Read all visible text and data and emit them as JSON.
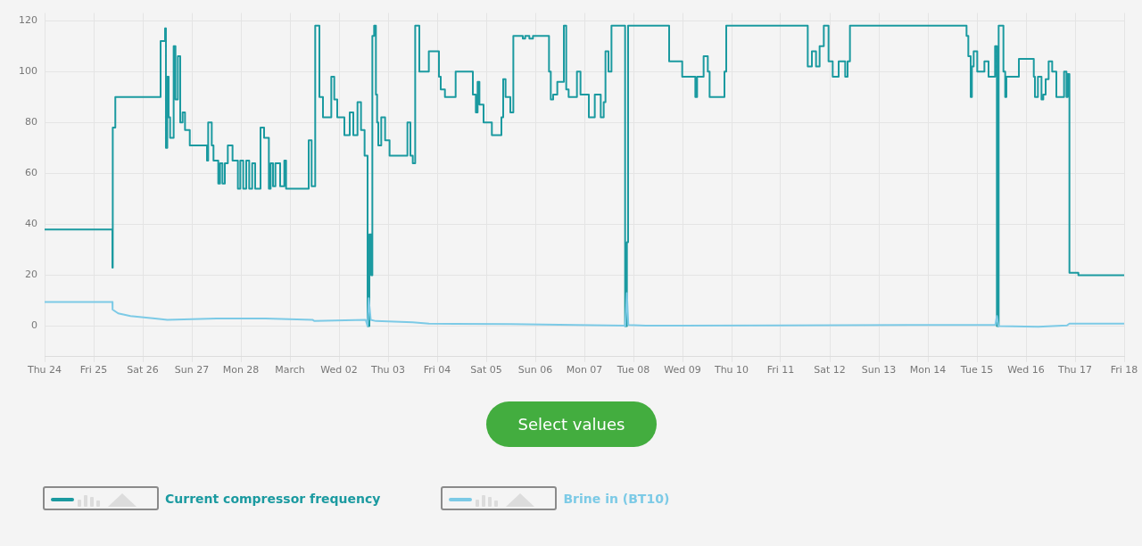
{
  "chart_data": {
    "type": "line",
    "xlim": [
      "--02-24",
      "--03-18"
    ],
    "ylim": [
      -12,
      123
    ],
    "xticks": [
      {
        "value": "--02-24",
        "label": "Thu 24"
      },
      {
        "value": "--02-25",
        "label": "Fri 25"
      },
      {
        "value": "--02-26",
        "label": "Sat 26"
      },
      {
        "value": "--02-27",
        "label": "Sun 27"
      },
      {
        "value": "--02-28",
        "label": "Mon 28"
      },
      {
        "value": "--03-01",
        "label": "March"
      },
      {
        "value": "--03-02",
        "label": "Wed 02"
      },
      {
        "value": "--03-03",
        "label": "Thu 03"
      },
      {
        "value": "--03-04",
        "label": "Fri 04"
      },
      {
        "value": "--03-05",
        "label": "Sat 05"
      },
      {
        "value": "--03-06",
        "label": "Sun 06"
      },
      {
        "value": "--03-07",
        "label": "Mon 07"
      },
      {
        "value": "--03-08",
        "label": "Tue 08"
      },
      {
        "value": "--03-09",
        "label": "Wed 09"
      },
      {
        "value": "--03-10",
        "label": "Thu 10"
      },
      {
        "value": "--03-11",
        "label": "Fri 11"
      },
      {
        "value": "--03-12",
        "label": "Sat 12"
      },
      {
        "value": "--03-13",
        "label": "Sun 13"
      },
      {
        "value": "--03-14",
        "label": "Mon 14"
      },
      {
        "value": "--03-15",
        "label": "Tue 15"
      },
      {
        "value": "--03-16",
        "label": "Wed 16"
      },
      {
        "value": "--03-17",
        "label": "Thu 17"
      },
      {
        "value": "--03-18",
        "label": "Fri 18"
      }
    ],
    "yticks": [
      0,
      20,
      40,
      60,
      80,
      100,
      120
    ],
    "grid": true,
    "legend": "bottom left",
    "annotations": [
      "Select values"
    ],
    "series": [
      {
        "name": "Current compressor frequency",
        "type": "step",
        "color": "#1b9aa0",
        "x": [
          "--02-24T00:00",
          "--02-25T09:10",
          "--02-25T09:20",
          "--02-25T10:35",
          "--02-26T08:44",
          "--02-26T10:55",
          "--02-26T11:20",
          "--02-26T12:00",
          "--02-26T12:40",
          "--02-26T13:23",
          "--02-26T15:07",
          "--02-26T16:00",
          "--02-26T17:10",
          "--02-26T18:20",
          "--02-26T19:30",
          "--02-26T20:40",
          "--02-26T23:00",
          "--02-27T07:25",
          "--02-27T08:00",
          "--02-27T09:45",
          "--02-27T10:36",
          "--02-27T12:56",
          "--02-27T13:49",
          "--02-27T14:59",
          "--02-27T16:09",
          "--02-27T17:36",
          "--02-27T19:55",
          "--02-27T22:32",
          "--02-27T23:42",
          "--02-28T01:09",
          "--02-28T02:37",
          "--02-28T04:04",
          "--02-28T05:32",
          "--02-28T06:59",
          "--02-28T09:36",
          "--02-28T11:21",
          "--02-28T13:41",
          "--02-28T14:33",
          "--02-28T15:43",
          "--02-28T16:53",
          "--02-28T19:12",
          "--02-28T21:14",
          "--02-28T22:06",
          "--03-01T09:10",
          "--03-01T10:36",
          "--03-01T12:21",
          "--03-01T14:24",
          "--03-01T16:09",
          "--03-01T20:13",
          "--03-01T21:40",
          "--03-01T23:08",
          "--03-02T02:37",
          "--03-02T05:14",
          "--03-02T06:59",
          "--03-02T09:02",
          "--03-02T10:45",
          "--03-02T12:30",
          "--03-02T13:58",
          "--03-02T14:50",
          "--03-02T15:43",
          "--03-02T16:18",
          "--03-02T17:10",
          "--03-02T18:02",
          "--03-02T18:37",
          "--03-02T19:12",
          "--03-02T20:39",
          "--03-02T22:32",
          "--03-03T00:43",
          "--03-03T09:27",
          "--03-03T10:55",
          "--03-03T12:04",
          "--03-03T13:15",
          "--03-03T15:16",
          "--03-03T19:55",
          "--03-04T00:52",
          "--03-04T01:45",
          "--03-04T03:48",
          "--03-04T09:02",
          "--03-04T17:27",
          "--03-04T18:55",
          "--03-04T19:47",
          "--03-04T20:40",
          "--03-04T22:41",
          "--03-05T02:45",
          "--03-05T07:25",
          "--03-05T08:17",
          "--03-05T09:27",
          "--03-05T11:47",
          "--03-05T13:15",
          "--03-05T17:53",
          "--03-05T19:03",
          "--03-05T21:06",
          "--03-05T22:51",
          "--03-06T06:42",
          "--03-06T07:34",
          "--03-06T08:44",
          "--03-06T10:45",
          "--03-06T13:58",
          "--03-06T15:07",
          "--03-06T16:18",
          "--03-06T20:22",
          "--03-06T22:06",
          "--03-07T02:11",
          "--03-07T05:05",
          "--03-07T08:00",
          "--03-07T09:27",
          "--03-07T10:19",
          "--03-07T11:47",
          "--03-07T13:15",
          "--03-07T19:55",
          "--03-07T20:48",
          "--03-07T21:23",
          "--03-08T17:27",
          "--03-08T23:51",
          "--03-09T06:16",
          "--03-09T07:08",
          "--03-09T10:19",
          "--03-09T12:22",
          "--03-09T13:15",
          "--03-09T20:31",
          "--03-09T21:23",
          "--03-11T13:15",
          "--03-11T15:16",
          "--03-11T17:18",
          "--03-11T19:03",
          "--03-11T21:06",
          "--03-11T23:25",
          "--03-12T01:27",
          "--03-12T04:22",
          "--03-12T07:34",
          "--03-12T08:44",
          "--03-12T09:53",
          "--03-14T18:55",
          "--03-14T19:47",
          "--03-14T20:57",
          "--03-14T21:32",
          "--03-14T22:24",
          "--03-15T00:09",
          "--03-15T03:39",
          "--03-15T05:40",
          "--03-15T08:52",
          "--03-15T09:45",
          "--03-15T10:37",
          "--03-15T12:57",
          "--03-15T13:49",
          "--03-15T14:24",
          "--03-15T20:31",
          "--03-16T03:48",
          "--03-16T04:22",
          "--03-16T05:49",
          "--03-16T07:34",
          "--03-16T08:27",
          "--03-16T09:36",
          "--03-16T11:04",
          "--03-16T12:48",
          "--03-16T14:50",
          "--03-16T18:37",
          "--03-16T19:47",
          "--03-16T20:21",
          "--03-16T21:14",
          "--03-17T01:36",
          "--03-18T00:00"
        ],
        "values": [
          38,
          23,
          78,
          90,
          112,
          117,
          70,
          98,
          82,
          74,
          110,
          89,
          106,
          80,
          84,
          77,
          71,
          65,
          80,
          71,
          65,
          56,
          64,
          56,
          64,
          71,
          65,
          54,
          65,
          54,
          65,
          54,
          64,
          54,
          78,
          74,
          54,
          64,
          55,
          64,
          55,
          65,
          54,
          73,
          55,
          118,
          90,
          82,
          98,
          89,
          82,
          75,
          84,
          75,
          88,
          77,
          67,
          0,
          36,
          20,
          114,
          118,
          91,
          80,
          71,
          82,
          73,
          67,
          80,
          67,
          64,
          118,
          100,
          108,
          98,
          93,
          90,
          100,
          91,
          84,
          96,
          87,
          80,
          75,
          82,
          97,
          90,
          84,
          114,
          113,
          114,
          113,
          114,
          100,
          89,
          91,
          96,
          118,
          93,
          90,
          100,
          91,
          82,
          91,
          82,
          88,
          108,
          100,
          118,
          0,
          33,
          118,
          104,
          98,
          90,
          98,
          106,
          100,
          90,
          100,
          118,
          102,
          108,
          102,
          110,
          118,
          104,
          98,
          104,
          98,
          104,
          118,
          114,
          106,
          90,
          102,
          108,
          100,
          104,
          98,
          110,
          0,
          118,
          100,
          90,
          98,
          105,
          98,
          90,
          98,
          89,
          91,
          97,
          104,
          100,
          90,
          100,
          90,
          99,
          21,
          20,
          20
        ]
      },
      {
        "name": "Brine in (BT10)",
        "color": "#7ccae6",
        "x": [
          "--02-24T00:00",
          "--02-25T09:10",
          "--02-25T09:15",
          "--02-25T12:00",
          "--02-25T18:00",
          "--02-26T06:00",
          "--02-26T12:00",
          "--02-27T12:00",
          "--02-28T12:00",
          "--03-01T11:00",
          "--03-01T12:00",
          "--03-02T13:00",
          "--03-02T13:58",
          "--03-02T14:30",
          "--03-02T15:30",
          "--03-02T18:00",
          "--03-03T12:00",
          "--03-03T20:00",
          "--03-05T12:00",
          "--03-07T19:30",
          "--03-07T20:00",
          "--03-07T20:48",
          "--03-07T21:30",
          "--03-08T06:00",
          "--03-11T00:00",
          "--03-15T09:00",
          "--03-15T09:45",
          "--03-15T10:30",
          "--03-16T06:00",
          "--03-16T20:00",
          "--03-16T21:14",
          "--03-18T00:00"
        ],
        "values": [
          9.5,
          9.5,
          6.5,
          5,
          4,
          3,
          2.5,
          3,
          3,
          2.5,
          2,
          2.5,
          0,
          11,
          2.5,
          2,
          1.5,
          1,
          0.8,
          0.2,
          0,
          13,
          0.5,
          0.2,
          0.3,
          0.5,
          4,
          0,
          -0.2,
          0.3,
          1,
          1
        ]
      }
    ]
  }
}
